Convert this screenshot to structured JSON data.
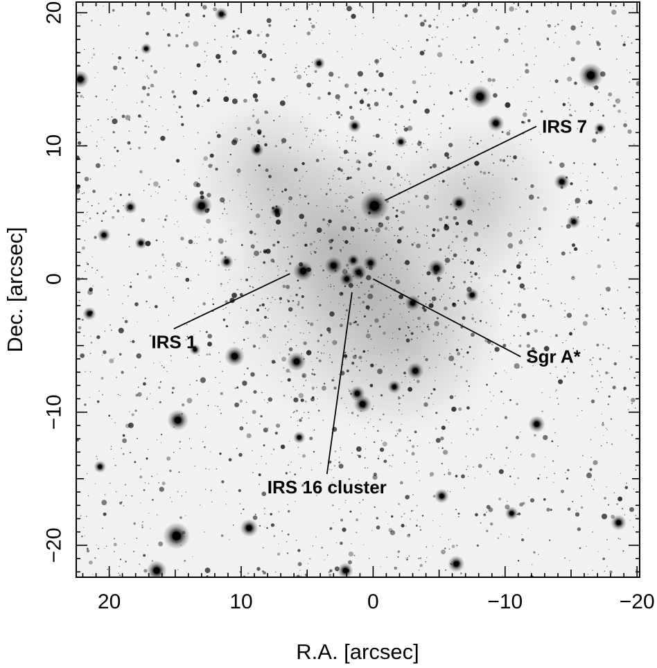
{
  "figure": {
    "x_axis": {
      "label": "R.A. [arcsec]",
      "ticks": [
        {
          "value": 20,
          "label": "20"
        },
        {
          "value": 10,
          "label": "10"
        },
        {
          "value": 0,
          "label": "0"
        },
        {
          "value": -10,
          "label": "−10"
        },
        {
          "value": -20,
          "label": "−20"
        }
      ],
      "range": [
        22.5,
        -20.2
      ],
      "direction": "decreasing to the right"
    },
    "y_axis": {
      "label": "Dec. [arcsec]",
      "ticks": [
        {
          "value": 20,
          "label": "20"
        },
        {
          "value": 10,
          "label": "10"
        },
        {
          "value": 0,
          "label": "0"
        },
        {
          "value": -10,
          "label": "−10"
        },
        {
          "value": -20,
          "label": "−20"
        }
      ],
      "range": [
        -22.4,
        20.8
      ]
    },
    "image": {
      "description": "greyscale inverted star field",
      "background_color": "#f1f1f1",
      "star_color": "#000000"
    },
    "annotations": [
      {
        "label": "IRS 7",
        "target": [
          -0.9,
          5.9
        ],
        "label_at": [
          -12.8,
          11.0
        ],
        "anchor": "start"
      },
      {
        "label": "IRS 1",
        "target": [
          6.3,
          0.4
        ],
        "label_at": [
          15.1,
          -5.2
        ],
        "anchor": "middle"
      },
      {
        "label": "Sgr A*",
        "target": [
          0.0,
          0.0
        ],
        "label_at": [
          -11.6,
          -6.3
        ],
        "anchor": "start"
      },
      {
        "label": "IRS 16 cluster",
        "target": [
          1.6,
          -1.0
        ],
        "label_at": [
          3.5,
          -16.1
        ],
        "anchor": "middle"
      }
    ],
    "bright_stars": [
      {
        "x": -0.1,
        "y": 5.5,
        "m": 2.6
      },
      {
        "x": 5.3,
        "y": 0.6,
        "m": 1.8
      },
      {
        "x": 3.0,
        "y": 1.0,
        "m": 1.6
      },
      {
        "x": 1.1,
        "y": 0.5,
        "m": 1.4
      },
      {
        "x": 2.0,
        "y": 0.0,
        "m": 1.3
      },
      {
        "x": 0.2,
        "y": 1.2,
        "m": 1.3
      },
      {
        "x": 1.5,
        "y": 1.4,
        "m": 1.1
      },
      {
        "x": -4.8,
        "y": 0.8,
        "m": 1.6
      },
      {
        "x": -8.1,
        "y": 13.7,
        "m": 2.1
      },
      {
        "x": -9.3,
        "y": 11.7,
        "m": 1.5
      },
      {
        "x": -16.5,
        "y": 15.3,
        "m": 2.2
      },
      {
        "x": 13.0,
        "y": 5.5,
        "m": 1.9
      },
      {
        "x": 10.5,
        "y": -5.8,
        "m": 1.8
      },
      {
        "x": 5.8,
        "y": -6.2,
        "m": 1.7
      },
      {
        "x": 14.8,
        "y": -10.6,
        "m": 1.9
      },
      {
        "x": 14.9,
        "y": -19.3,
        "m": 2.4
      },
      {
        "x": 9.4,
        "y": -18.7,
        "m": 1.6
      },
      {
        "x": 16.4,
        "y": -21.9,
        "m": 1.8
      },
      {
        "x": 22.2,
        "y": 15.0,
        "m": 1.6
      },
      {
        "x": 0.8,
        "y": -9.4,
        "m": 1.6
      },
      {
        "x": -3.2,
        "y": -6.9,
        "m": 1.5
      },
      {
        "x": 1.2,
        "y": -8.6,
        "m": 1.4
      },
      {
        "x": -14.3,
        "y": 7.3,
        "m": 1.4
      },
      {
        "x": -6.5,
        "y": 5.7,
        "m": 1.4
      },
      {
        "x": 7.3,
        "y": 5.1,
        "m": 1.2
      },
      {
        "x": 18.4,
        "y": 5.4,
        "m": 1.2
      },
      {
        "x": 20.4,
        "y": 3.3,
        "m": 1.2
      },
      {
        "x": 17.6,
        "y": 2.7,
        "m": 1.1
      },
      {
        "x": 11.1,
        "y": 1.3,
        "m": 1.2
      },
      {
        "x": 21.5,
        "y": -2.6,
        "m": 1.2
      },
      {
        "x": 13.5,
        "y": -5.3,
        "m": 1.0
      },
      {
        "x": -12.4,
        "y": -10.9,
        "m": 1.5
      },
      {
        "x": -18.6,
        "y": -18.3,
        "m": 1.4
      },
      {
        "x": -6.3,
        "y": -21.4,
        "m": 1.5
      },
      {
        "x": 2.1,
        "y": -21.9,
        "m": 1.4
      },
      {
        "x": -15.2,
        "y": 4.3,
        "m": 1.2
      },
      {
        "x": 11.5,
        "y": 19.9,
        "m": 1.2
      },
      {
        "x": 1.4,
        "y": 11.5,
        "m": 1.2
      },
      {
        "x": -3.0,
        "y": -1.8,
        "m": 1.4
      },
      {
        "x": -2.1,
        "y": 10.3,
        "m": 1.1
      },
      {
        "x": -17.2,
        "y": 11.3,
        "m": 1.1
      },
      {
        "x": 17.2,
        "y": 17.3,
        "m": 1.0
      },
      {
        "x": -5.2,
        "y": -16.3,
        "m": 1.3
      },
      {
        "x": 20.7,
        "y": -14.1,
        "m": 1.1
      },
      {
        "x": -10.5,
        "y": -17.6,
        "m": 1.2
      },
      {
        "x": 8.8,
        "y": 9.7,
        "m": 1.2
      },
      {
        "x": 4.1,
        "y": 16.2,
        "m": 1.1
      },
      {
        "x": -7.5,
        "y": -1.2,
        "m": 1.2
      },
      {
        "x": 5.6,
        "y": -11.9,
        "m": 1.1
      },
      {
        "x": -1.6,
        "y": -8.1,
        "m": 1.2
      }
    ],
    "star_field": {
      "seed": 20240601,
      "count": 2600,
      "concentration_center": [
        1.0,
        0.0
      ]
    }
  }
}
